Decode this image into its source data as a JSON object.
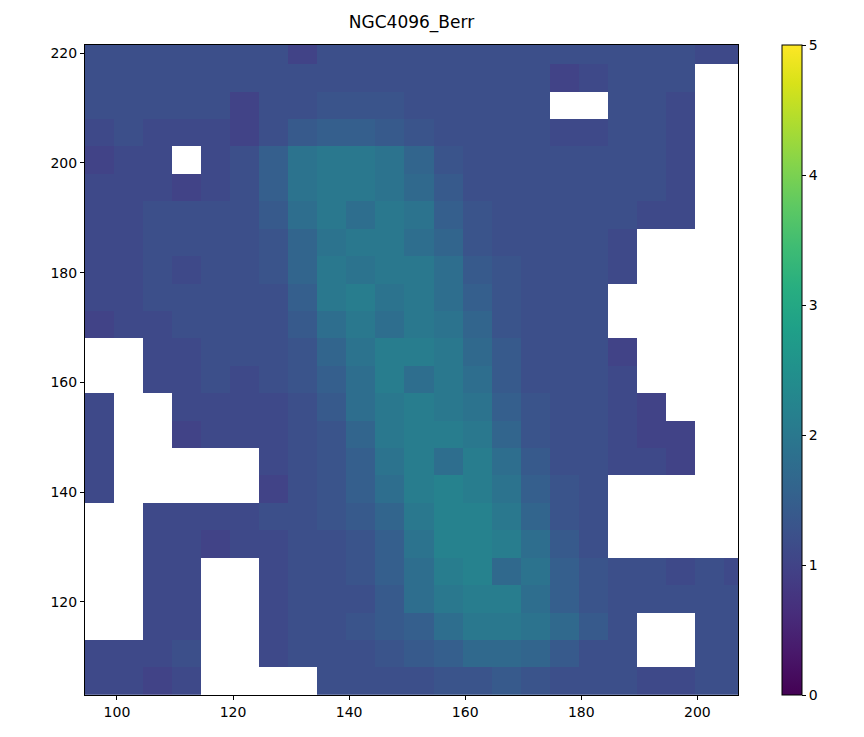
{
  "chart_data": {
    "type": "heatmap",
    "title": "NGC4096_Berr",
    "color": "viridis",
    "xlim": [
      94.5,
      207
    ],
    "xticks": [
      100,
      120,
      140,
      160,
      180,
      200
    ],
    "ylim": [
      103,
      221.5
    ],
    "yticks": [
      120,
      140,
      160,
      180,
      200,
      220
    ],
    "colorbar_range": [
      0,
      5
    ],
    "colorbar_ticks": [
      0,
      1,
      2,
      3,
      4,
      5
    ],
    "x": [
      97,
      102,
      107,
      112,
      117,
      122,
      127,
      132,
      137,
      142,
      147,
      152,
      157,
      162,
      167,
      172,
      177,
      182,
      187,
      192,
      197,
      202,
      207
    ],
    "y": [
      105.5,
      110.5,
      115.5,
      120.5,
      125.5,
      130.5,
      135.5,
      140.5,
      145.5,
      150.5,
      155.5,
      160.5,
      165.5,
      170.5,
      175.5,
      180.5,
      185.5,
      190.5,
      195.5,
      200.5,
      205.5,
      210.5,
      215.5,
      220.5
    ],
    "z": [
      [
        1.1,
        1.1,
        1.0,
        1.1,
        null,
        null,
        null,
        null,
        1.2,
        1.2,
        1.2,
        1.2,
        1.3,
        1.3,
        1.4,
        1.3,
        1.2,
        1.2,
        1.2,
        1.1,
        1.1,
        1.2,
        1.2
      ],
      [
        1.1,
        1.1,
        1.1,
        1.2,
        null,
        null,
        1.1,
        1.2,
        1.2,
        1.2,
        1.3,
        1.4,
        1.5,
        1.7,
        1.7,
        1.6,
        1.4,
        1.2,
        1.2,
        null,
        null,
        1.2,
        1.2
      ],
      [
        null,
        null,
        1.1,
        1.1,
        null,
        null,
        1.1,
        1.2,
        1.2,
        1.3,
        1.4,
        1.5,
        1.8,
        2.0,
        2.0,
        1.9,
        1.7,
        1.4,
        1.2,
        null,
        null,
        1.2,
        1.2
      ],
      [
        null,
        null,
        1.1,
        1.1,
        null,
        null,
        1.1,
        1.2,
        1.2,
        1.2,
        1.4,
        1.8,
        2.0,
        2.1,
        2.1,
        1.8,
        1.5,
        1.3,
        1.2,
        1.2,
        1.2,
        1.2,
        1.2
      ],
      [
        null,
        null,
        1.1,
        1.1,
        null,
        null,
        1.1,
        1.2,
        1.2,
        1.3,
        1.5,
        1.8,
        2.1,
        2.2,
        1.7,
        1.9,
        1.5,
        1.3,
        1.2,
        1.2,
        1.1,
        1.2,
        1.1
      ],
      [
        null,
        null,
        1.1,
        1.1,
        1.0,
        1.1,
        1.1,
        1.2,
        1.2,
        1.3,
        1.5,
        1.9,
        2.2,
        2.2,
        2.1,
        1.8,
        1.4,
        1.2,
        null,
        null,
        null,
        null,
        null
      ],
      [
        null,
        null,
        1.1,
        1.1,
        1.1,
        1.1,
        1.2,
        1.2,
        1.3,
        1.4,
        1.6,
        2.0,
        2.2,
        2.2,
        2.0,
        1.6,
        1.3,
        1.2,
        null,
        null,
        null,
        null,
        null
      ],
      [
        1.1,
        null,
        null,
        null,
        null,
        null,
        1.0,
        1.2,
        1.3,
        1.5,
        1.8,
        2.1,
        2.2,
        2.1,
        1.9,
        1.5,
        1.3,
        1.2,
        null,
        null,
        null,
        null,
        null
      ],
      [
        1.1,
        null,
        null,
        null,
        null,
        null,
        1.1,
        1.2,
        1.3,
        1.5,
        1.9,
        2.1,
        1.8,
        2.1,
        1.8,
        1.4,
        1.2,
        1.2,
        1.1,
        1.1,
        1.0,
        null,
        null
      ],
      [
        1.1,
        null,
        null,
        1.0,
        1.1,
        1.1,
        1.1,
        1.2,
        1.3,
        1.6,
        2.0,
        2.1,
        2.1,
        2.0,
        1.6,
        1.3,
        1.2,
        1.2,
        1.1,
        1.0,
        1.0,
        null,
        null
      ],
      [
        1.1,
        null,
        null,
        1.1,
        1.1,
        1.1,
        1.1,
        1.2,
        1.4,
        1.8,
        2.0,
        2.1,
        2.0,
        1.9,
        1.5,
        1.3,
        1.2,
        1.2,
        1.1,
        1.0,
        null,
        null,
        null
      ],
      [
        null,
        null,
        1.1,
        1.1,
        1.2,
        1.1,
        1.2,
        1.3,
        1.5,
        1.8,
        2.1,
        1.8,
        2.0,
        1.8,
        1.4,
        1.2,
        1.2,
        1.2,
        1.1,
        null,
        null,
        null,
        null
      ],
      [
        null,
        null,
        1.1,
        1.1,
        1.2,
        1.2,
        1.2,
        1.3,
        1.6,
        1.9,
        2.1,
        2.1,
        2.0,
        1.7,
        1.4,
        1.2,
        1.2,
        1.2,
        1.0,
        null,
        null,
        null,
        null
      ],
      [
        1.0,
        1.1,
        1.1,
        1.2,
        1.2,
        1.2,
        1.2,
        1.4,
        1.8,
        2.0,
        1.8,
        2.0,
        1.9,
        1.6,
        1.3,
        1.2,
        1.2,
        1.2,
        null,
        null,
        null,
        null,
        null
      ],
      [
        1.1,
        1.1,
        1.2,
        1.2,
        1.2,
        1.2,
        1.2,
        1.5,
        2.0,
        2.1,
        1.9,
        2.0,
        1.8,
        1.5,
        1.3,
        1.2,
        1.2,
        1.2,
        null,
        null,
        null,
        null,
        null
      ],
      [
        1.1,
        1.1,
        1.2,
        1.1,
        1.2,
        1.2,
        1.3,
        1.6,
        2.0,
        1.9,
        2.0,
        2.0,
        1.8,
        1.4,
        1.3,
        1.2,
        1.2,
        1.2,
        1.1,
        null,
        null,
        null,
        null
      ],
      [
        1.1,
        1.1,
        1.2,
        1.2,
        1.2,
        1.2,
        1.3,
        1.6,
        1.9,
        2.0,
        2.0,
        1.8,
        1.6,
        1.3,
        1.2,
        1.2,
        1.2,
        1.2,
        1.1,
        null,
        null,
        null,
        null
      ],
      [
        1.1,
        1.1,
        1.2,
        1.2,
        1.2,
        1.2,
        1.4,
        1.8,
        2.0,
        1.8,
        2.0,
        1.9,
        1.5,
        1.3,
        1.2,
        1.2,
        1.2,
        1.2,
        1.2,
        1.1,
        1.1,
        null,
        null
      ],
      [
        1.1,
        1.1,
        1.1,
        1.0,
        1.1,
        1.2,
        1.5,
        1.9,
        2.0,
        2.0,
        1.9,
        1.7,
        1.4,
        1.2,
        1.2,
        1.2,
        1.2,
        1.2,
        1.2,
        1.2,
        1.1,
        null,
        null
      ],
      [
        1.0,
        1.1,
        1.1,
        null,
        1.1,
        1.2,
        1.5,
        1.9,
        2.0,
        2.0,
        1.9,
        1.6,
        1.3,
        1.2,
        1.2,
        1.2,
        1.2,
        1.2,
        1.2,
        1.2,
        1.1,
        null,
        null
      ],
      [
        1.1,
        1.2,
        1.1,
        1.1,
        1.1,
        1.0,
        1.2,
        1.4,
        1.5,
        1.5,
        1.4,
        1.3,
        1.2,
        1.2,
        1.2,
        1.2,
        1.1,
        1.1,
        1.2,
        1.2,
        1.1,
        null,
        null
      ],
      [
        1.2,
        1.2,
        1.2,
        1.2,
        1.2,
        1.0,
        1.2,
        1.2,
        1.3,
        1.3,
        1.3,
        1.2,
        1.2,
        1.2,
        1.2,
        1.2,
        null,
        null,
        1.2,
        1.2,
        1.1,
        null,
        null
      ],
      [
        1.2,
        1.2,
        1.2,
        1.2,
        1.2,
        1.2,
        1.2,
        1.2,
        1.2,
        1.2,
        1.2,
        1.2,
        1.2,
        1.2,
        1.2,
        1.2,
        1.0,
        1.1,
        1.2,
        1.2,
        1.2,
        null,
        null
      ],
      [
        1.2,
        1.2,
        1.2,
        1.2,
        1.2,
        1.2,
        1.2,
        1.0,
        1.2,
        1.2,
        1.2,
        1.2,
        1.2,
        1.2,
        1.2,
        1.2,
        1.2,
        1.2,
        1.2,
        1.2,
        1.2,
        1.1,
        1.1
      ]
    ]
  }
}
